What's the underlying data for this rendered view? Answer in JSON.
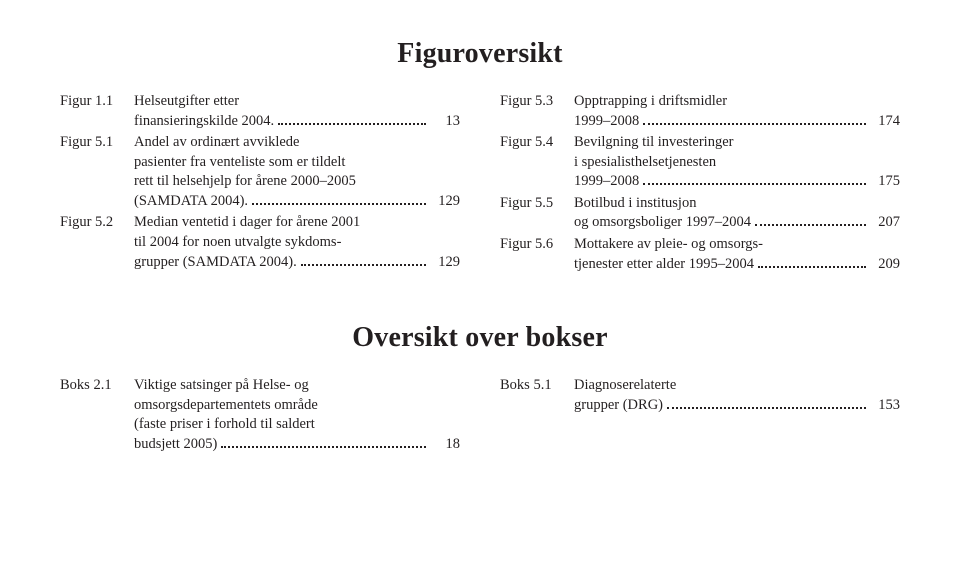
{
  "section1": {
    "title": "Figuroversikt",
    "left": [
      {
        "label": "Figur 1.1",
        "lines": [
          "Helseutgifter etter",
          "finansieringskilde 2004."
        ],
        "page": "13"
      },
      {
        "label": "Figur 5.1",
        "lines": [
          "Andel av ordinært avviklede",
          "pasienter fra venteliste som er tildelt",
          "rett til helsehjelp for årene 2000–2005",
          "(SAMDATA 2004)."
        ],
        "page": "129"
      },
      {
        "label": "Figur 5.2",
        "lines": [
          "Median ventetid i dager for årene 2001",
          "til 2004 for noen utvalgte sykdoms-",
          "grupper (SAMDATA 2004)."
        ],
        "page": "129"
      }
    ],
    "right": [
      {
        "label": "Figur 5.3",
        "lines": [
          "Opptrapping i driftsmidler",
          "1999–2008"
        ],
        "page": "174"
      },
      {
        "label": "Figur 5.4",
        "lines": [
          "Bevilgning til investeringer",
          "i spesialisthelsetjenesten",
          "1999–2008"
        ],
        "page": "175"
      },
      {
        "label": "Figur 5.5",
        "lines": [
          "Botilbud i institusjon",
          "og omsorgsboliger 1997–2004"
        ],
        "page": "207"
      },
      {
        "label": "Figur 5.6",
        "lines": [
          "Mottakere av pleie- og omsorgs-",
          "tjenester etter alder 1995–2004"
        ],
        "page": "209"
      }
    ]
  },
  "section2": {
    "title": "Oversikt over bokser",
    "left": [
      {
        "label": "Boks 2.1",
        "lines": [
          "Viktige satsinger på Helse- og",
          "omsorgsdepartementets område",
          "(faste priser i forhold til saldert",
          "budsjett 2005)"
        ],
        "page": "18"
      }
    ],
    "right": [
      {
        "label": "Boks 5.1",
        "lines": [
          "Diagnoserelaterte",
          "grupper (DRG)"
        ],
        "page": "153"
      }
    ]
  }
}
